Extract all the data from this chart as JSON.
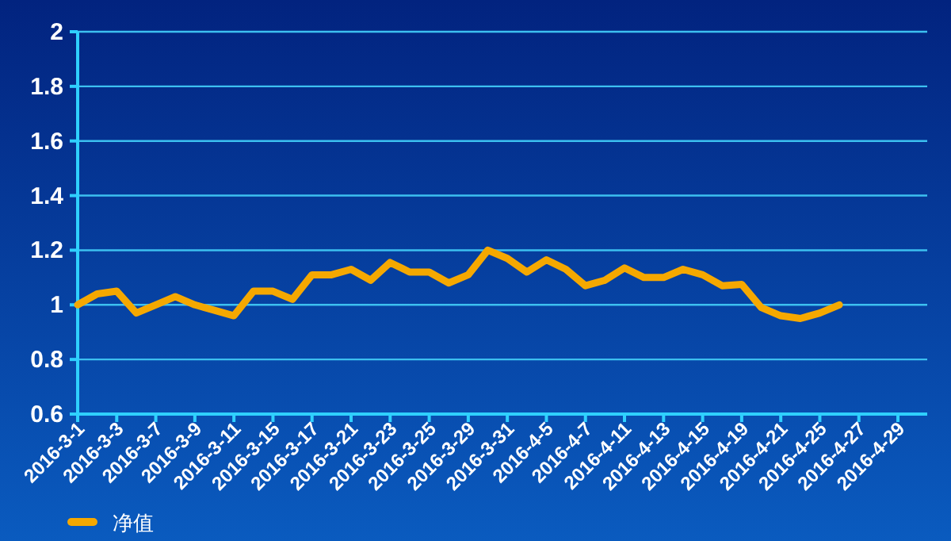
{
  "chart_data": {
    "type": "line",
    "categories": [
      "2016-3-1",
      null,
      "2016-3-3",
      null,
      "2016-3-7",
      null,
      "2016-3-9",
      null,
      "2016-3-11",
      null,
      "2016-3-15",
      null,
      "2016-3-17",
      null,
      "2016-3-21",
      null,
      "2016-3-23",
      null,
      "2016-3-25",
      null,
      "2016-3-29",
      null,
      "2016-3-31",
      null,
      "2016-4-5",
      null,
      "2016-4-7",
      null,
      "2016-4-11",
      null,
      "2016-4-13",
      null,
      "2016-4-15",
      null,
      "2016-4-19",
      null,
      "2016-4-21",
      null,
      "2016-4-25",
      null,
      "2016-4-27",
      null,
      "2016-4-29",
      null
    ],
    "series": [
      {
        "name": "净值",
        "color": "#f5a800",
        "values": [
          1.0,
          1.04,
          1.05,
          0.97,
          1.0,
          1.03,
          1.0,
          0.98,
          0.96,
          1.05,
          1.05,
          1.02,
          1.11,
          1.11,
          1.13,
          1.09,
          1.155,
          1.12,
          1.12,
          1.08,
          1.11,
          1.2,
          1.17,
          1.12,
          1.165,
          1.13,
          1.07,
          1.09,
          1.135,
          1.1,
          1.1,
          1.13,
          1.11,
          1.07,
          1.075,
          0.99,
          0.96,
          0.95,
          0.97,
          1.0,
          null,
          null,
          null,
          null
        ]
      }
    ],
    "ylim": [
      0.6,
      2
    ],
    "yticks": [
      0.6,
      0.8,
      1,
      1.2,
      1.4,
      1.6,
      1.8,
      2
    ],
    "grid": "y",
    "legend": "bottom left",
    "marker": "none",
    "line_style": "solid"
  }
}
